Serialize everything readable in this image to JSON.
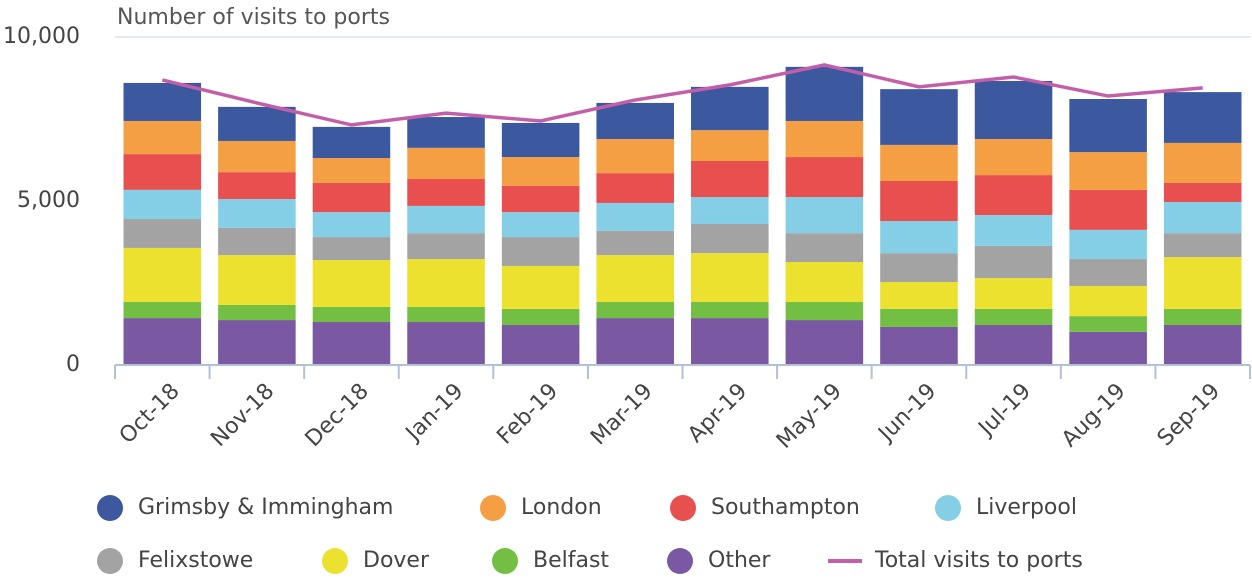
{
  "chart_data": {
    "type": "bar",
    "stacked": true,
    "title": "Number of visits to ports",
    "categories": [
      "Oct-18",
      "Nov-18",
      "Dec-18",
      "Jan-19",
      "Feb-19",
      "Mar-19",
      "Apr-19",
      "May-19",
      "Jun-19",
      "Jul-19",
      "Aug-19",
      "Sep-19"
    ],
    "series": [
      {
        "name": "Other",
        "color": "#7a58a2",
        "values": [
          1430,
          1370,
          1310,
          1310,
          1220,
          1430,
          1430,
          1370,
          1160,
          1220,
          1010,
          1220
        ]
      },
      {
        "name": "Belfast",
        "color": "#72bf44",
        "values": [
          490,
          460,
          460,
          460,
          490,
          490,
          490,
          550,
          550,
          490,
          480,
          490
        ]
      },
      {
        "name": "Dover",
        "color": "#ebe12e",
        "values": [
          1650,
          1520,
          1430,
          1460,
          1310,
          1430,
          1490,
          1220,
          820,
          940,
          920,
          1580
        ]
      },
      {
        "name": "Felixstowe",
        "color": "#a3a3a3",
        "values": [
          880,
          830,
          700,
          790,
          880,
          740,
          890,
          880,
          880,
          980,
          820,
          730
        ]
      },
      {
        "name": "Liverpool",
        "color": "#84cfe6",
        "values": [
          890,
          880,
          760,
          830,
          760,
          850,
          820,
          1100,
          980,
          940,
          890,
          950
        ]
      },
      {
        "name": "Southampton",
        "color": "#e85050",
        "values": [
          1090,
          820,
          890,
          820,
          800,
          910,
          1100,
          1220,
          1220,
          1220,
          1220,
          580
        ]
      },
      {
        "name": "London",
        "color": "#f59f45",
        "values": [
          1010,
          950,
          760,
          950,
          880,
          1040,
          940,
          1100,
          1100,
          1100,
          1150,
          1220
        ]
      },
      {
        "name": "Grimsby & Immingham",
        "color": "#3c59a0",
        "values": [
          1160,
          1040,
          950,
          940,
          1040,
          1100,
          1320,
          1650,
          1700,
          1770,
          1620,
          1550
        ]
      },
      {
        "name": "Total visits to ports",
        "color": "#c35fa9",
        "type": "line",
        "values": [
          8690,
          7990,
          7320,
          7680,
          7440,
          8080,
          8540,
          9150,
          8480,
          8780,
          8200,
          8450
        ]
      }
    ],
    "ylim": [
      0,
      10000
    ],
    "yticks": [
      0,
      {
        "value": 5000,
        "label": "5,000"
      },
      {
        "value": 10000,
        "label": "10,000"
      }
    ],
    "grid": false
  }
}
